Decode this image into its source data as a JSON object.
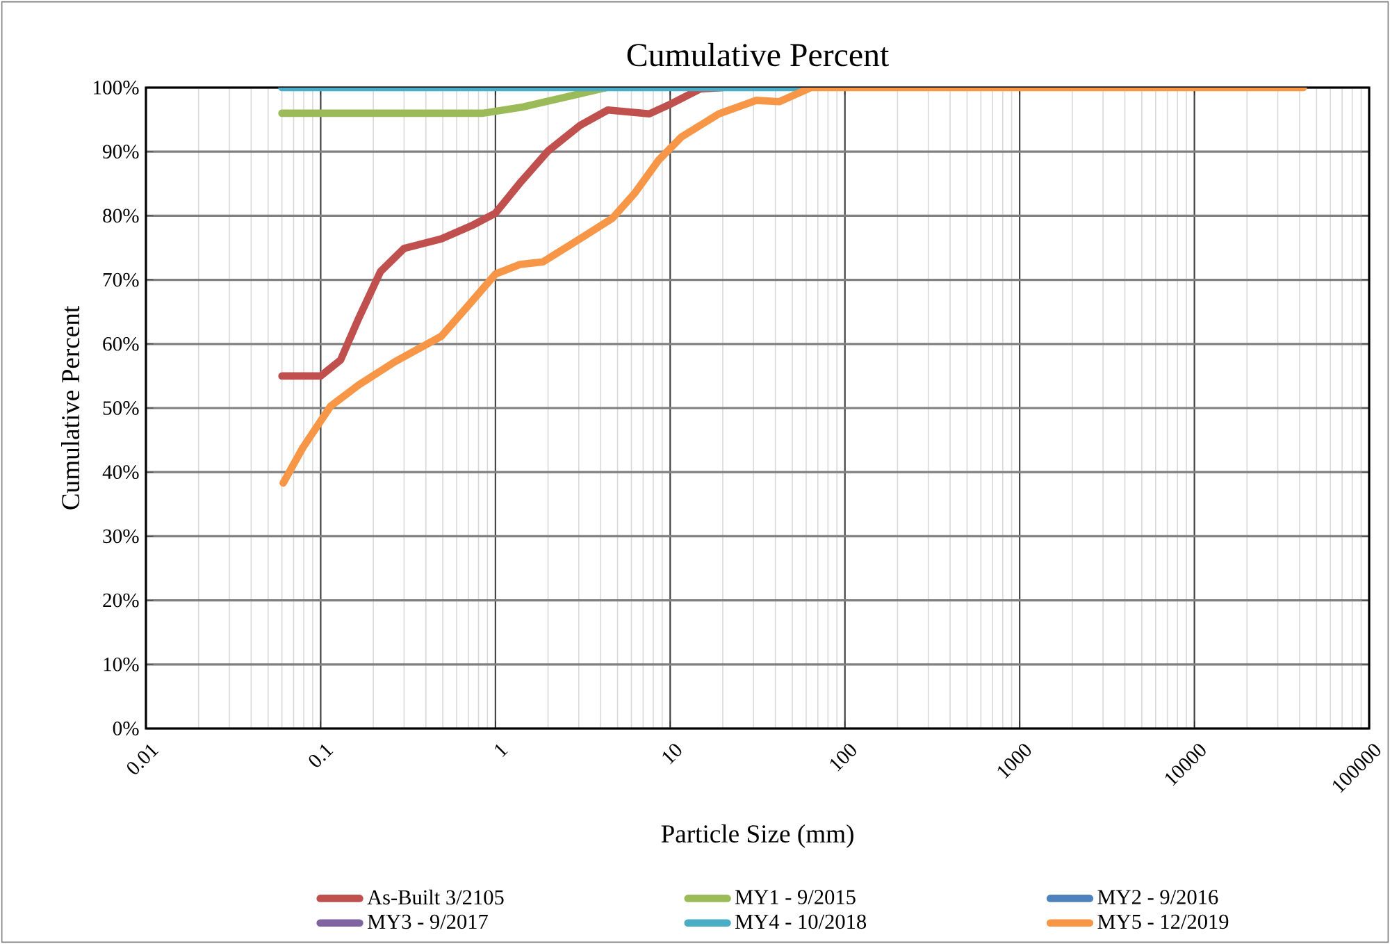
{
  "chart_data": {
    "type": "line",
    "title": "Cumulative Percent",
    "xlabel": "Particle Size (mm)",
    "ylabel": "Cumulative Percent",
    "log": "x",
    "grid": true,
    "legend": "bottom",
    "marker": "none",
    "line_style": "solid",
    "xlim": [
      0.01,
      100000
    ],
    "xticks": [
      0.01,
      0.1,
      1,
      10,
      100,
      1000,
      10000,
      100000
    ],
    "ylim": [
      0,
      100
    ],
    "yticks": [
      {
        "value": 0,
        "label": "0%"
      },
      {
        "value": 10,
        "label": "10%"
      },
      {
        "value": 20,
        "label": "20%"
      },
      {
        "value": 30,
        "label": "30%"
      },
      {
        "value": 40,
        "label": "40%"
      },
      {
        "value": 50,
        "label": "50%"
      },
      {
        "value": 60,
        "label": "60%"
      },
      {
        "value": 70,
        "label": "70%"
      },
      {
        "value": 80,
        "label": "80%"
      },
      {
        "value": 90,
        "label": "90%"
      },
      {
        "value": 100,
        "label": "100%"
      }
    ],
    "series": [
      {
        "name": "As-Built 3/2105",
        "color": "#c0504d",
        "x": [
          0.06,
          0.1,
          0.13,
          0.165,
          0.22,
          0.3,
          0.49,
          0.75,
          1.0,
          1.38,
          2.0,
          3.05,
          4.4,
          7.6,
          10,
          14.9,
          20
        ],
        "values": [
          55,
          55,
          57.5,
          64,
          71.3,
          74.9,
          76.4,
          78.6,
          80.4,
          85.1,
          90.1,
          94.1,
          96.5,
          95.9,
          97.4,
          99.8,
          100
        ]
      },
      {
        "name": "MY1 - 9/2015",
        "color": "#9bbb59",
        "x": [
          0.06,
          0.85,
          1.45,
          2.5,
          4.3
        ],
        "values": [
          96,
          96,
          97,
          98.5,
          100
        ]
      },
      {
        "name": "MY2 - 9/2016",
        "color": "#4f81bd"
      },
      {
        "name": "MY3 - 9/2017",
        "color": "#8064a2"
      },
      {
        "name": "MY4 - 10/2018",
        "color": "#4bacc6",
        "x": [
          0.06,
          55
        ],
        "values": [
          100,
          100
        ]
      },
      {
        "name": "MY5 - 12/2019",
        "color": "#f79646",
        "x": [
          0.061,
          0.079,
          0.114,
          0.165,
          0.265,
          0.49,
          0.71,
          1.0,
          1.38,
          1.87,
          3.05,
          4.67,
          6.3,
          8.6,
          11.6,
          19,
          31,
          42,
          64,
          42000
        ],
        "values": [
          38.3,
          43.8,
          50.3,
          53.6,
          57.2,
          61.2,
          66.2,
          70.9,
          72.4,
          72.8,
          76.4,
          79.6,
          83.6,
          88.7,
          92.3,
          95.9,
          98,
          97.8,
          100,
          100
        ]
      }
    ]
  }
}
